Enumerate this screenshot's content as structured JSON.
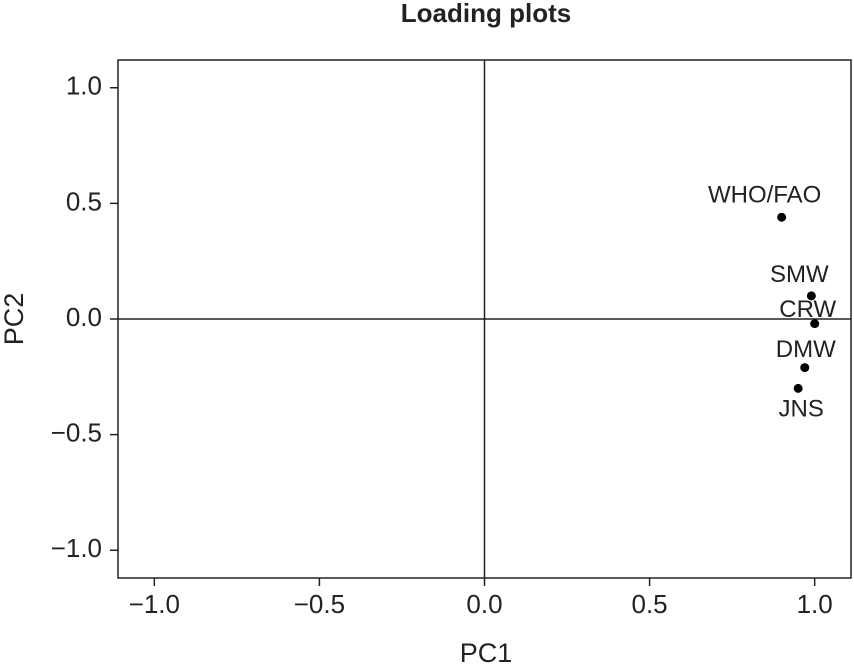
{
  "chart_data": {
    "type": "scatter",
    "title": "Loading plots",
    "x_label": "PC1",
    "y_label": "PC2",
    "labels": [
      "WHO/FAO",
      "SMW",
      "CRW",
      "DMW",
      "JNS"
    ],
    "x": [
      0.9,
      0.99,
      1.0,
      0.97,
      0.95
    ],
    "y": [
      0.44,
      0.1,
      -0.02,
      -0.21,
      -0.3
    ],
    "color": "#000000",
    "xlim": [
      -1.11,
      1.11
    ],
    "ylim": [
      -1.12,
      1.12
    ],
    "xticks": [
      {
        "value": -1.0,
        "label": "−1.0"
      },
      {
        "value": -0.5,
        "label": "−0.5"
      },
      {
        "value": 0,
        "label": "0.0"
      },
      0.5,
      {
        "value": 1.0,
        "label": "1.0"
      }
    ],
    "yticks": [
      {
        "value": -1.0,
        "label": "−1.0"
      },
      {
        "value": -0.5,
        "label": "−0.5"
      },
      {
        "value": 0,
        "label": "0.0"
      },
      0.5,
      {
        "value": 1.0,
        "label": "1.0"
      }
    ],
    "zero_lines": true,
    "grid": false
  }
}
